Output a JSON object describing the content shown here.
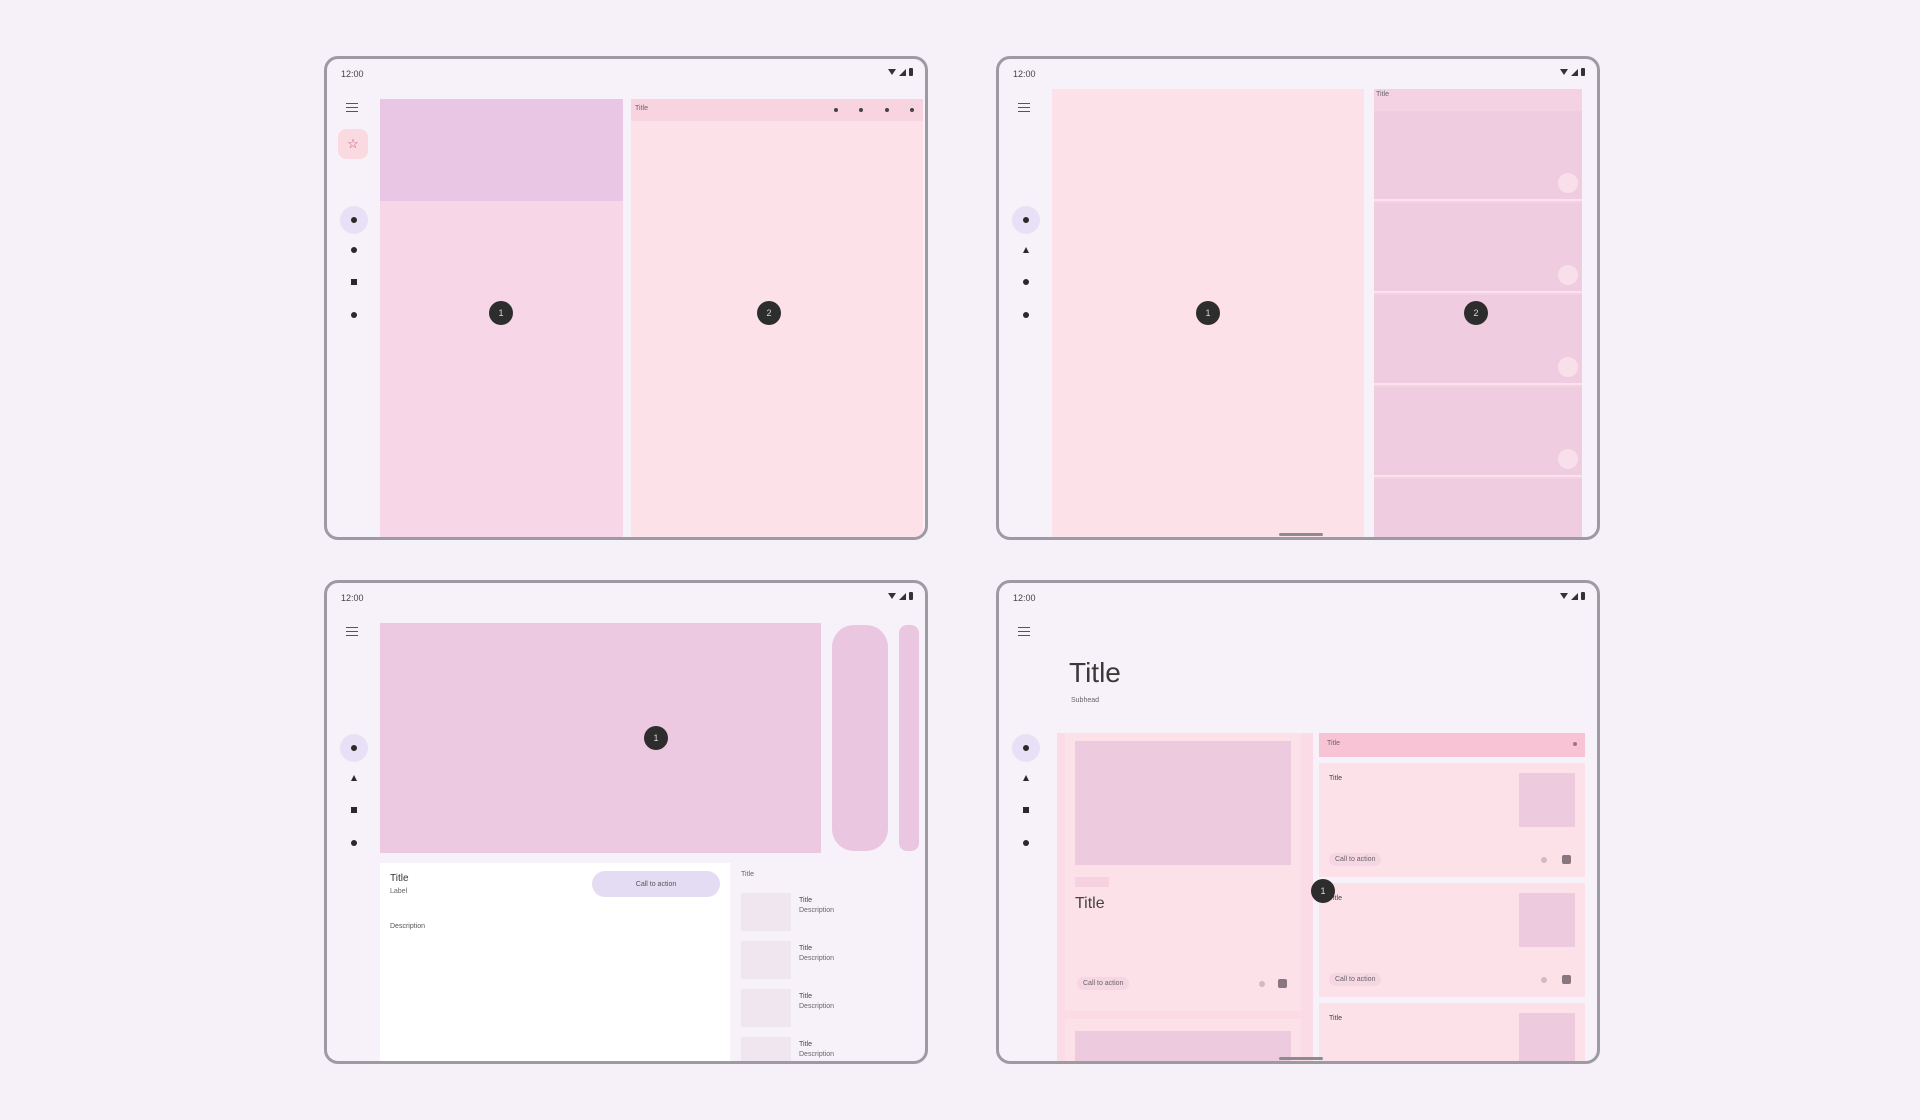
{
  "status": {
    "time": "12:00"
  },
  "colors": {
    "background": "#f6f1f8",
    "pane_pink": "#f7d9e8",
    "pane_light": "#fde1e8",
    "pane_mauve": "#e9c6e4",
    "badge": "#2d2d2d"
  },
  "panel1": {
    "detail_title": "Title",
    "badge_left": "1",
    "badge_right": "2"
  },
  "panel2": {
    "list_title": "Title",
    "badge_left": "1",
    "badge_right": "2"
  },
  "panel3": {
    "badge": "1",
    "item_title": "Title",
    "item_subtitle": "Label",
    "cta_label": "Call to action",
    "description": "Description",
    "side_title": "Title",
    "side_items": [
      {
        "title": "Title",
        "desc": "Description"
      },
      {
        "title": "Title",
        "desc": "Description"
      },
      {
        "title": "Title",
        "desc": "Description"
      },
      {
        "title": "Title",
        "desc": "Description"
      }
    ]
  },
  "panel4": {
    "page_title": "Title",
    "page_subtitle": "Subhead",
    "card_title": "Title",
    "card_action": "Call to action",
    "header_title": "Title",
    "badge": "1",
    "list_cards": [
      {
        "title": "Title",
        "action": "Call to action"
      },
      {
        "title": "Title",
        "action": "Call to action"
      },
      {
        "title": "Title",
        "action": ""
      }
    ]
  }
}
